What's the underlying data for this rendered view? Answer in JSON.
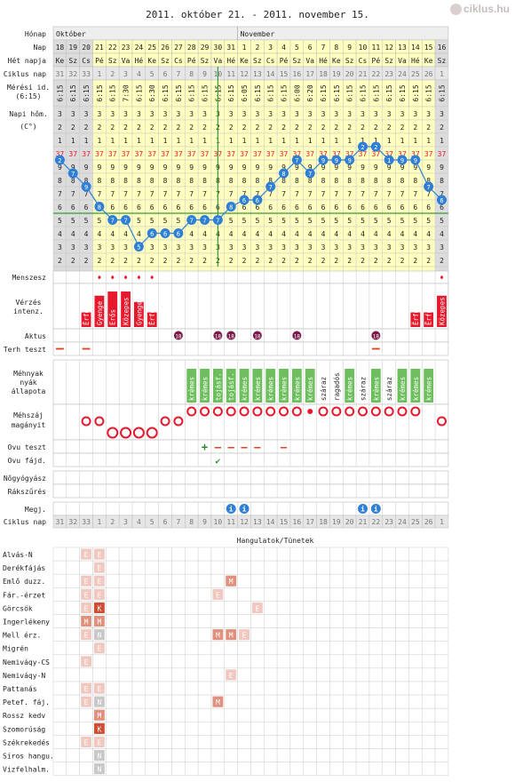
{
  "title": "2011. október 21. - 2011. november 15.",
  "logo": "ciklus.hu",
  "row_labels": {
    "honap": "Hónap",
    "nap": "Nap",
    "het_napja": "Hét napja",
    "ciklus_nap": "Ciklus nap",
    "meresi_id": "Mérési id.",
    "meresi_id2": "(6:15)",
    "napi_hom": "Napi hőm.",
    "celsius": "(C°)",
    "menszesz": "Menszesz",
    "verzes": "Vérzés",
    "verzes2": "intenz.",
    "aktus": "Aktus",
    "terh": "Terh teszt",
    "mehnyak": "Méhnyak",
    "mehnyak2": "nyák",
    "mehnyak3": "állapota",
    "mehszaj": "Méhszáj",
    "mehszaj2": "magányit",
    "ovu_teszt": "Ovu teszt",
    "ovu_fajd": "Ovu fájd.",
    "nogyogyasz": "Nőgyógyász",
    "rakszures": "Rákszűrés",
    "megj": "Megj.",
    "ciklus_nap2": "Ciklus nap",
    "hangulatok": "Hangulatok/Tünetek"
  },
  "months": [
    "Október",
    "November"
  ],
  "days": [
    "18",
    "19",
    "20",
    "21",
    "22",
    "23",
    "24",
    "25",
    "26",
    "27",
    "28",
    "29",
    "30",
    "31",
    "1",
    "2",
    "3",
    "4",
    "5",
    "6",
    "7",
    "8",
    "9",
    "10",
    "11",
    "12",
    "13",
    "14",
    "15",
    "16"
  ],
  "weekdays": [
    "Ke",
    "Sz",
    "Cs",
    "Pé",
    "Sz",
    "Va",
    "Hé",
    "Ke",
    "Sz",
    "Cs",
    "Pé",
    "Sz",
    "Va",
    "Hé",
    "Ke",
    "Sz",
    "Cs",
    "Pé",
    "Sz",
    "Va",
    "Hé",
    "Ke",
    "Sz",
    "Cs",
    "Pé",
    "Sz",
    "Va",
    "Hé",
    "Ke",
    "Sz"
  ],
  "cycle_days": [
    "31",
    "32",
    "33",
    "1",
    "2",
    "3",
    "4",
    "5",
    "6",
    "7",
    "8",
    "9",
    "10",
    "11",
    "12",
    "13",
    "14",
    "15",
    "16",
    "17",
    "18",
    "19",
    "20",
    "21",
    "22",
    "23",
    "24",
    "25",
    "26",
    "1"
  ],
  "times": [
    "6:15",
    "6:15",
    "6:15",
    "6:15",
    "6:15",
    "7:30",
    "6:15",
    "6:30",
    "6:15",
    "6:15",
    "6:15",
    "6:15",
    "6:15",
    "6:15",
    "6:05",
    "6:15",
    "6:15",
    "6:15",
    "6:00",
    "6:20",
    "6:15",
    "6:15",
    "6:15",
    "6:15",
    "6:15",
    "6:15",
    "6:15",
    "6:15",
    "6:15",
    "6:15"
  ],
  "temp_scale": [
    "3",
    "3",
    "2",
    "1",
    "37",
    "9",
    "8",
    "7",
    "6",
    "5",
    "4",
    "3",
    "2"
  ],
  "chart_data": {
    "type": "line",
    "xlabel": "",
    "ylabel": "",
    "x": [
      "18",
      "19",
      "20",
      "21",
      "22",
      "23",
      "24",
      "25",
      "26",
      "27",
      "28",
      "29",
      "30",
      "31",
      "1",
      "2",
      "3",
      "4",
      "5",
      "6",
      "7",
      "8",
      "9",
      "10",
      "11",
      "12",
      "13",
      "14",
      "15",
      "16"
    ],
    "y": [
      36.95,
      36.85,
      36.75,
      36.6,
      36.5,
      36.5,
      36.3,
      36.4,
      36.4,
      36.4,
      36.5,
      36.5,
      36.5,
      36.6,
      36.65,
      36.65,
      36.75,
      36.85,
      36.95,
      36.85,
      36.95,
      36.95,
      36.95,
      37.05,
      37.05,
      36.95,
      36.95,
      36.95,
      36.75,
      36.65
    ],
    "ylim": [
      36.2,
      37.4
    ],
    "temp_labels": [
      "2",
      "7",
      "9",
      "8",
      "7",
      "7",
      "5",
      "6",
      "6",
      "6",
      "7",
      "7",
      "7",
      "8",
      "6",
      "6",
      "7",
      "8",
      "7",
      "7",
      "9",
      "9",
      "9",
      "2",
      "2",
      "1",
      "9",
      "9",
      "7",
      "6"
    ],
    "coverline": 36.55
  },
  "menstruation_days": [
    "21",
    "22",
    "23",
    "24",
    "25",
    "16"
  ],
  "bleeding": [
    {
      "day": "20",
      "label": "Ĕrfolt",
      "level": 0.35
    },
    {
      "day": "21",
      "label": "Gyenge",
      "level": 0.75
    },
    {
      "day": "22",
      "label": "Erős",
      "level": 0.85
    },
    {
      "day": "23",
      "label": "Közepes",
      "level": 0.85
    },
    {
      "day": "24",
      "label": "Gyenge",
      "level": 0.6
    },
    {
      "day": "25",
      "label": "Ĕrfolt",
      "level": 0.35
    },
    {
      "day": "14",
      "label": "Ĕrfolt",
      "level": 0.35
    },
    {
      "day": "15",
      "label": "Ĕrfolt",
      "level": 0.35
    },
    {
      "day": "16",
      "label": "Közepes",
      "level": 0.75
    }
  ],
  "aktus_days": [
    "27",
    "30",
    "31",
    "2",
    "5",
    "11"
  ],
  "aktus_glyph": "⓬",
  "terh_days": [
    "18",
    "20",
    "11"
  ],
  "mucus": [
    {
      "day": "28",
      "label": "krémes"
    },
    {
      "day": "29",
      "label": "krémes"
    },
    {
      "day": "30",
      "label": "tojásf."
    },
    {
      "day": "31",
      "label": "tojásf."
    },
    {
      "day": "1",
      "label": "krémes"
    },
    {
      "day": "2",
      "label": "krémes"
    },
    {
      "day": "3",
      "label": "krémes"
    },
    {
      "day": "4",
      "label": "krémes"
    },
    {
      "day": "5",
      "label": "krémes"
    },
    {
      "day": "6",
      "label": "krémes"
    },
    {
      "day": "7",
      "label": "száraz"
    },
    {
      "day": "8",
      "label": "ragadós"
    },
    {
      "day": "9",
      "label": "krémes"
    },
    {
      "day": "10",
      "label": "száraz"
    },
    {
      "day": "11",
      "label": "krémes"
    },
    {
      "day": "12",
      "label": "száraz"
    },
    {
      "day": "13",
      "label": "krémes"
    },
    {
      "day": "14",
      "label": "krémes"
    },
    {
      "day": "15",
      "label": "krémes"
    }
  ],
  "cervix": [
    {
      "day": "20",
      "pos": "mid"
    },
    {
      "day": "21",
      "pos": "mid"
    },
    {
      "day": "22",
      "pos": "low"
    },
    {
      "day": "23",
      "pos": "low"
    },
    {
      "day": "24",
      "pos": "low"
    },
    {
      "day": "25",
      "pos": "low"
    },
    {
      "day": "26",
      "pos": "mid"
    },
    {
      "day": "27",
      "pos": "mid"
    },
    {
      "day": "28",
      "pos": "high"
    },
    {
      "day": "29",
      "pos": "high"
    },
    {
      "day": "30",
      "pos": "high"
    },
    {
      "day": "31",
      "pos": "high"
    },
    {
      "day": "1",
      "pos": "high"
    },
    {
      "day": "2",
      "pos": "high"
    },
    {
      "day": "3",
      "pos": "high"
    },
    {
      "day": "4",
      "pos": "high"
    },
    {
      "day": "5",
      "pos": "high"
    },
    {
      "day": "6",
      "pos": "dot"
    },
    {
      "day": "7",
      "pos": "high"
    },
    {
      "day": "8",
      "pos": "high"
    },
    {
      "day": "9",
      "pos": "high"
    },
    {
      "day": "10",
      "pos": "high"
    },
    {
      "day": "11",
      "pos": "high"
    },
    {
      "day": "12",
      "pos": "high"
    },
    {
      "day": "13",
      "pos": "high"
    },
    {
      "day": "14",
      "pos": "high"
    },
    {
      "day": "16",
      "pos": "mid"
    }
  ],
  "ovu_test": [
    {
      "day": "29",
      "val": "+"
    },
    {
      "day": "30",
      "val": "–"
    },
    {
      "day": "31",
      "val": "–"
    },
    {
      "day": "1",
      "val": "–"
    },
    {
      "day": "2",
      "val": "–"
    },
    {
      "day": "4",
      "val": "–"
    }
  ],
  "ovu_pain_days": [
    "30"
  ],
  "notes_days": [
    "31",
    "1",
    "10",
    "11"
  ],
  "moods": [
    {
      "name": "Alvás-N",
      "marks": [
        {
          "day": "20",
          "m": "E"
        },
        {
          "day": "21",
          "m": "E"
        }
      ]
    },
    {
      "name": "Derékfájás",
      "marks": [
        {
          "day": "21",
          "m": "E"
        }
      ]
    },
    {
      "name": "Emlő duzz.",
      "marks": [
        {
          "day": "20",
          "m": "E"
        },
        {
          "day": "21",
          "m": "E"
        },
        {
          "day": "31",
          "m": "M"
        }
      ]
    },
    {
      "name": "Fár.-érzet",
      "marks": [
        {
          "day": "20",
          "m": "E"
        },
        {
          "day": "21",
          "m": "E"
        },
        {
          "day": "30",
          "m": "E"
        }
      ]
    },
    {
      "name": "Görcsök",
      "marks": [
        {
          "day": "20",
          "m": "E"
        },
        {
          "day": "21",
          "m": "K"
        },
        {
          "day": "2",
          "m": "E"
        }
      ]
    },
    {
      "name": "Ingerlékeny",
      "marks": [
        {
          "day": "20",
          "m": "M"
        },
        {
          "day": "21",
          "m": "M"
        }
      ]
    },
    {
      "name": "Mell érz.",
      "marks": [
        {
          "day": "20",
          "m": "E"
        },
        {
          "day": "21",
          "m": "N"
        },
        {
          "day": "30",
          "m": "M"
        },
        {
          "day": "31",
          "m": "M"
        },
        {
          "day": "1",
          "m": "E"
        }
      ]
    },
    {
      "name": "Migrén",
      "marks": [
        {
          "day": "21",
          "m": "E"
        }
      ]
    },
    {
      "name": "Nemiváqy-CS",
      "marks": [
        {
          "day": "20",
          "m": "E"
        }
      ]
    },
    {
      "name": "Nemiváqy-N",
      "marks": [
        {
          "day": "31",
          "m": "E"
        }
      ]
    },
    {
      "name": "Pattanás",
      "marks": [
        {
          "day": "20",
          "m": "E"
        },
        {
          "day": "21",
          "m": "E"
        }
      ]
    },
    {
      "name": "Petef. fáj.",
      "marks": [
        {
          "day": "20",
          "m": "E"
        },
        {
          "day": "21",
          "m": "N"
        },
        {
          "day": "30",
          "m": "M"
        }
      ]
    },
    {
      "name": "Rossz kedv",
      "marks": [
        {
          "day": "21",
          "m": "M"
        }
      ]
    },
    {
      "name": "Szomorúság",
      "marks": [
        {
          "day": "21",
          "m": "K"
        }
      ]
    },
    {
      "name": "Székrekedés",
      "marks": [
        {
          "day": "20",
          "m": "E"
        },
        {
          "day": "21",
          "m": "E"
        }
      ]
    },
    {
      "name": "Síros hangu.",
      "marks": [
        {
          "day": "21",
          "m": "N"
        }
      ]
    },
    {
      "name": "Vizfelhalm.",
      "marks": [
        {
          "day": "21",
          "m": "N"
        }
      ]
    }
  ],
  "colors": {
    "yellow": "#ffffc0",
    "grey": "#dcdcdc",
    "blue": "#2f7fd6",
    "red": "#e8182c",
    "green": "#6cbf5c",
    "purple": "#7a1a4a",
    "mood_light": "#f0c8c0",
    "mood_mid": "#e0907c",
    "mood_dark": "#cc4f36",
    "mood_none": "#c8c8c8"
  }
}
